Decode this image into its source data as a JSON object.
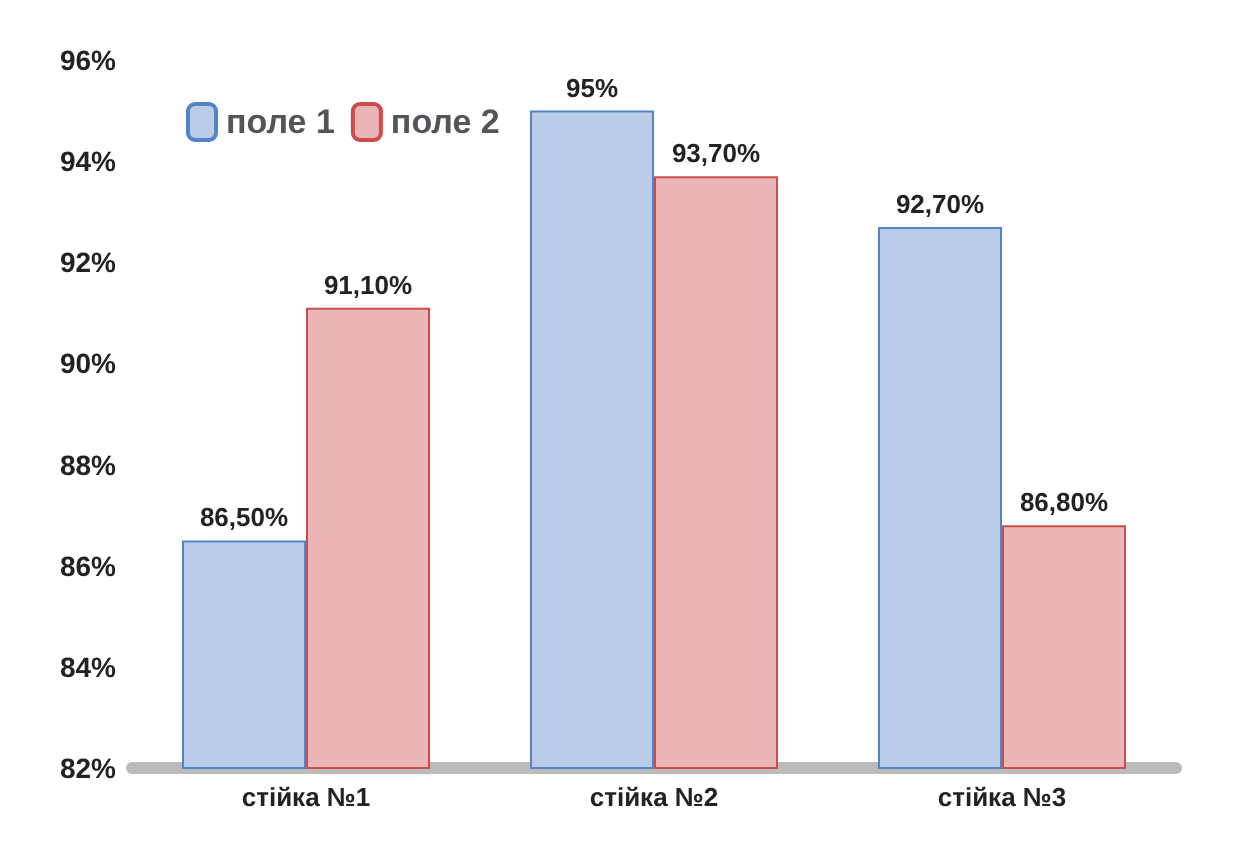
{
  "chart_data": {
    "type": "bar",
    "categories": [
      "стійка №1",
      "стійка №2",
      "стійка №3"
    ],
    "series": [
      {
        "name": "поле 1",
        "color": "#b9cde8",
        "values": [
          86.5,
          95,
          92.7
        ],
        "value_labels": [
          "86,50%",
          "95%",
          "92,70%"
        ]
      },
      {
        "name": "поле 2",
        "color": "#eab5b5",
        "values": [
          91.1,
          93.7,
          86.8
        ],
        "value_labels": [
          "91,10%",
          "93,70%",
          "86,80%"
        ]
      }
    ],
    "ylim": [
      82,
      96
    ],
    "yticks": [
      {
        "value": 82,
        "label": "82%"
      },
      {
        "value": 84,
        "label": "84%"
      },
      {
        "value": 86,
        "label": "86%"
      },
      {
        "value": 88,
        "label": "88%"
      },
      {
        "value": 90,
        "label": "90%"
      },
      {
        "value": 92,
        "label": "92%"
      },
      {
        "value": 94,
        "label": "94%"
      },
      {
        "value": 96,
        "label": "96%"
      }
    ],
    "grid": false,
    "legend": "top left"
  }
}
